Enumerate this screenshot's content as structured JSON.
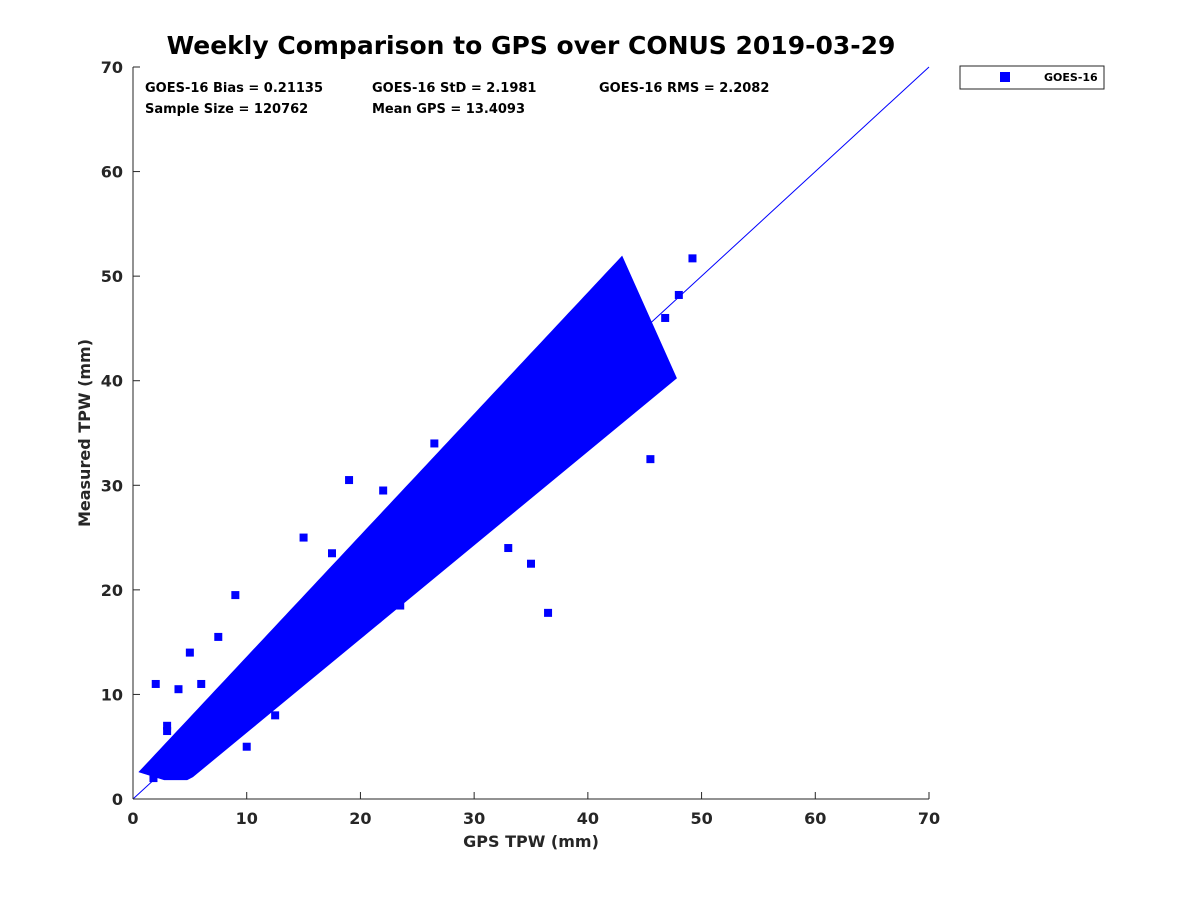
{
  "chart_data": {
    "type": "scatter",
    "title": "Weekly Comparison to GPS over CONUS 2019-03-29",
    "xlabel": "GPS TPW (mm)",
    "ylabel": "Measured TPW (mm)",
    "xlim": [
      0,
      70
    ],
    "ylim": [
      0,
      70
    ],
    "x_ticks": [
      "0",
      "10",
      "20",
      "30",
      "40",
      "50",
      "60",
      "70"
    ],
    "y_ticks": [
      "0",
      "10",
      "20",
      "30",
      "40",
      "50",
      "60",
      "70"
    ],
    "grid": false,
    "legend_position": "outside-top-right",
    "series": [
      {
        "name": "GOES-16",
        "marker": "square",
        "color": "#0000ff",
        "x": [
          2.0,
          3.5,
          5.0,
          7.0,
          10.0,
          14.0,
          18.0,
          22.0,
          26.0,
          30.0,
          34.0,
          38.0,
          42.0,
          45.0,
          49.2,
          48.0,
          46.8,
          45.5,
          36.5,
          35.0,
          33.0,
          26.5,
          23.5,
          22.0,
          19.0,
          17.5,
          15.0,
          12.0,
          10.0,
          9.0,
          12.5,
          7.5,
          5.0,
          4.0,
          3.0,
          3.5,
          6.0,
          2.0,
          3.0,
          1.8
        ],
        "y": [
          2.5,
          4.0,
          5.5,
          7.5,
          10.5,
          14.5,
          19.0,
          23.0,
          26.5,
          30.0,
          33.5,
          37.0,
          40.5,
          43.0,
          51.7,
          48.2,
          46.0,
          32.5,
          17.8,
          22.5,
          24.0,
          34.0,
          18.5,
          29.5,
          30.5,
          23.5,
          25.0,
          9.0,
          5.0,
          19.5,
          8.0,
          15.5,
          14.0,
          10.5,
          7.0,
          2.5,
          11.0,
          11.0,
          6.5,
          2.0
        ]
      },
      {
        "name": "one-to-one line",
        "type": "line",
        "color": "#0000ff",
        "x": [
          0,
          70
        ],
        "y": [
          0,
          70
        ]
      }
    ],
    "statistics": {
      "bias": "GOES-16 Bias = 0.21135",
      "std": "GOES-16 StD = 2.1981",
      "rms": "GOES-16 RMS = 2.2082",
      "sample_size": "Sample Size = 120762",
      "mean_gps": "Mean GPS = 13.4093"
    },
    "legend": [
      "GOES-16"
    ]
  }
}
